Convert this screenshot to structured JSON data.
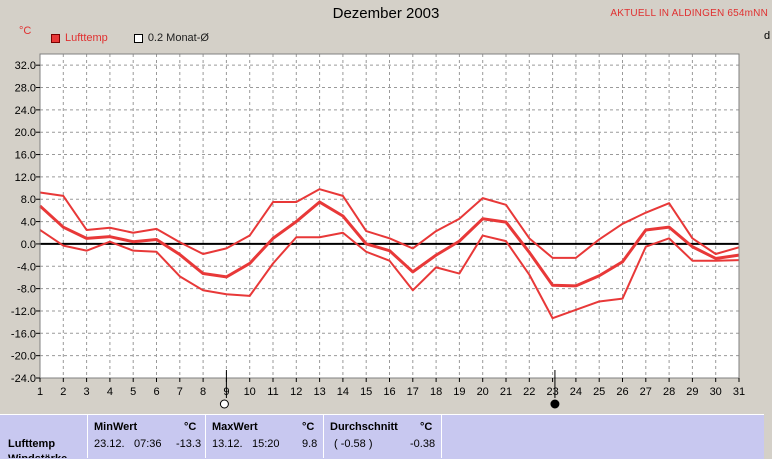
{
  "header": {
    "title": "Dezember 2003",
    "station": "AKTUELL IN ALDINGEN 654mNN",
    "edge_letter": "d"
  },
  "legend": {
    "unit": "°C",
    "items": [
      {
        "label": "Lufttemp",
        "style": "filled"
      },
      {
        "label": "0.2 Monat-Ø",
        "style": "empty"
      }
    ]
  },
  "chart_data": {
    "type": "line",
    "title": "Dezember 2003",
    "ylabel": "°C",
    "xlim": [
      1,
      31
    ],
    "ylim": [
      -24,
      34
    ],
    "yticks": [
      "32.0",
      "28.0",
      "24.0",
      "20.0",
      "16.0",
      "12.0",
      "8.0",
      "4.0",
      "0.0",
      "-4.0",
      "-8.0",
      "-12.0",
      "-16.0",
      "-20.0",
      "-24.0"
    ],
    "ytick_values": [
      32,
      28,
      24,
      20,
      16,
      12,
      8,
      4,
      0,
      -4,
      -8,
      -12,
      -16,
      -20,
      -24
    ],
    "x": [
      1,
      2,
      3,
      4,
      5,
      6,
      7,
      8,
      9,
      10,
      11,
      12,
      13,
      14,
      15,
      16,
      17,
      18,
      19,
      20,
      21,
      22,
      23,
      24,
      25,
      26,
      27,
      28,
      29,
      30,
      31
    ],
    "xticks": [
      "1",
      "2",
      "3",
      "4",
      "5",
      "6",
      "7",
      "8",
      "9",
      "10",
      "11",
      "12",
      "13",
      "14",
      "15",
      "16",
      "17",
      "18",
      "19",
      "20",
      "21",
      "22",
      "23",
      "24",
      "25",
      "26",
      "27",
      "28",
      "29",
      "30",
      "31"
    ],
    "grid": true,
    "reference_line": 0,
    "series": [
      {
        "name": "Lufttemp",
        "role": "max",
        "color": "#e83838",
        "values": [
          9.2,
          8.6,
          2.5,
          2.9,
          2.0,
          2.7,
          0.3,
          -1.8,
          -0.8,
          1.5,
          7.5,
          7.5,
          9.8,
          8.6,
          2.3,
          1.0,
          -0.8,
          2.3,
          4.5,
          8.2,
          7.0,
          1.0,
          -2.5,
          -2.5,
          0.8,
          3.6,
          5.6,
          7.3,
          1.0,
          -1.8,
          -0.6
        ]
      },
      {
        "name": "Lufttemp",
        "role": "mean",
        "color": "#e83838",
        "values": [
          6.8,
          3.0,
          1.0,
          1.3,
          0.4,
          0.8,
          -1.9,
          -5.3,
          -5.9,
          -3.5,
          1.0,
          4.0,
          7.5,
          5.0,
          0.0,
          -1.2,
          -5.0,
          -2.0,
          0.5,
          4.5,
          3.9,
          -1.5,
          -7.4,
          -7.5,
          -5.7,
          -3.2,
          2.5,
          3.0,
          -0.5,
          -2.6,
          -2.0
        ]
      },
      {
        "name": "Lufttemp",
        "role": "min",
        "color": "#e83838",
        "values": [
          2.5,
          -0.3,
          -1.2,
          0.4,
          -1.2,
          -1.4,
          -5.8,
          -8.3,
          -9.0,
          -9.3,
          -3.5,
          1.2,
          1.2,
          2.0,
          -1.4,
          -3.0,
          -8.3,
          -4.2,
          -5.3,
          1.5,
          0.5,
          -5.5,
          -13.3,
          -11.8,
          -10.3,
          -9.8,
          -0.5,
          1.0,
          -3.0,
          -3.0,
          -2.9
        ]
      }
    ],
    "markers": [
      {
        "x": 9,
        "symbol": "hollow-circle"
      },
      {
        "x": 23.1,
        "symbol": "filled-circle"
      }
    ]
  },
  "stats": {
    "row_label": "Lufttemp",
    "row_label_2": "Windstärke",
    "minwert": {
      "label": "MinWert",
      "unit": "°C",
      "date": "23.12.",
      "time": "07:36",
      "value": "-13.3"
    },
    "maxwert": {
      "label": "MaxWert",
      "unit": "°C",
      "date": "13.12.",
      "time": "15:20",
      "value": "9.8"
    },
    "durchschnitt": {
      "label": "Durchschnitt",
      "unit": "°C",
      "value1": "( -0.58 )",
      "value2": "-0.38"
    }
  }
}
